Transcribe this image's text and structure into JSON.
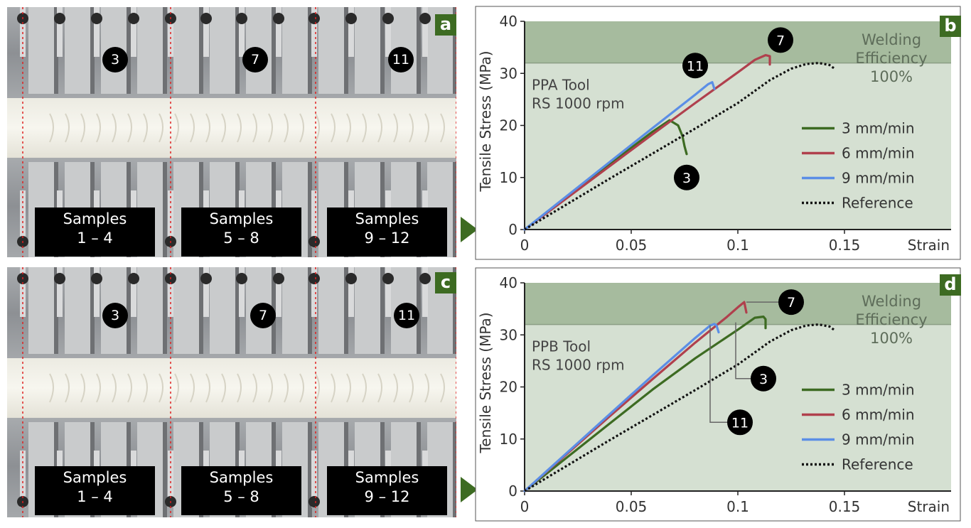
{
  "panels": {
    "a": "a",
    "b": "b",
    "c": "c",
    "d": "d"
  },
  "photos": [
    {
      "markers": [
        "3",
        "7",
        "11"
      ],
      "boxes": [
        {
          "title": "Samples",
          "range": "1 – 4"
        },
        {
          "title": "Samples",
          "range": "5 – 8"
        },
        {
          "title": "Samples",
          "range": "9 – 12"
        }
      ]
    },
    {
      "markers": [
        "3",
        "7",
        "11"
      ],
      "boxes": [
        {
          "title": "Samples",
          "range": "1 – 4"
        },
        {
          "title": "Samples",
          "range": "5 – 8"
        },
        {
          "title": "Samples",
          "range": "9 – 12"
        }
      ]
    }
  ],
  "colors": {
    "green": "#3d6b22",
    "red": "#b0404d",
    "blue": "#5b8ee6",
    "reference": "#111111",
    "plot_bg": "#d5e0d2",
    "band_bg": "#a6bb9e"
  },
  "chart_data": [
    {
      "type": "line",
      "xlabel": "Strain",
      "ylabel": "Tensile Stress (MPa)",
      "xlim": [
        0,
        0.2
      ],
      "ylim": [
        0,
        40
      ],
      "xticks": [
        0,
        0.05,
        0.1,
        0.15
      ],
      "xtick_labels": [
        "0",
        "0.05",
        "0.1",
        "0.15"
      ],
      "yticks": [
        0,
        10,
        20,
        30,
        40
      ],
      "ytick_labels": [
        "0",
        "10",
        "20",
        "30",
        "40"
      ],
      "annotation": [
        "PPA Tool",
        "RS 1000 rpm"
      ],
      "efficiency_label": [
        "Welding",
        "Efficiency",
        "100%"
      ],
      "efficiency_level": 32,
      "legend_position": "right",
      "series": [
        {
          "name": "3 mm/min",
          "color": "#3d6b22",
          "x": [
            0,
            0.02,
            0.04,
            0.06,
            0.068,
            0.072,
            0.074,
            0.075,
            0.076
          ],
          "y": [
            0,
            6.3,
            12.6,
            18.8,
            21,
            20,
            18,
            16,
            14.5
          ]
        },
        {
          "name": "6 mm/min",
          "color": "#b0404d",
          "x": [
            0,
            0.02,
            0.04,
            0.06,
            0.08,
            0.1,
            0.108,
            0.113,
            0.115,
            0.115
          ],
          "y": [
            0,
            6.1,
            12.2,
            18.3,
            24.3,
            30.2,
            32.6,
            33.5,
            33.3,
            31.7
          ]
        },
        {
          "name": "9 mm/min",
          "color": "#5b8ee6",
          "x": [
            0,
            0.02,
            0.04,
            0.06,
            0.08,
            0.086,
            0.088,
            0.089
          ],
          "y": [
            0,
            6.5,
            13,
            19.5,
            25.9,
            27.9,
            28.3,
            27
          ]
        },
        {
          "name": "Reference",
          "color": "#111111",
          "dashed": true,
          "x": [
            0,
            0.02,
            0.04,
            0.06,
            0.08,
            0.1,
            0.115,
            0.125,
            0.132,
            0.138,
            0.143,
            0.145
          ],
          "y": [
            0,
            4.9,
            9.8,
            14.6,
            19.4,
            24.3,
            28.7,
            30.9,
            31.8,
            32,
            31.6,
            31
          ]
        }
      ],
      "point_labels": [
        {
          "text": "11",
          "x": 0.08,
          "y": 31.5,
          "tx": 0.086,
          "ty": 28.3,
          "leader": false
        },
        {
          "text": "7",
          "x": 0.12,
          "y": 36.4,
          "tx": 0.113,
          "ty": 33.5,
          "leader": false
        },
        {
          "text": "3",
          "x": 0.076,
          "y": 10,
          "tx": 0.076,
          "ty": 14.5,
          "leader": false
        }
      ]
    },
    {
      "type": "line",
      "xlabel": "Strain",
      "ylabel": "Tensile Stress (MPa)",
      "xlim": [
        0,
        0.2
      ],
      "ylim": [
        0,
        40
      ],
      "xticks": [
        0,
        0.05,
        0.1,
        0.15
      ],
      "xtick_labels": [
        "0",
        "0.05",
        "0.1",
        "0.15"
      ],
      "yticks": [
        0,
        10,
        20,
        30,
        40
      ],
      "ytick_labels": [
        "0",
        "10",
        "20",
        "30",
        "40"
      ],
      "annotation": [
        "PPB Tool",
        "RS 1000 rpm"
      ],
      "efficiency_label": [
        "Welding",
        "Efficiency",
        "100%"
      ],
      "efficiency_level": 32,
      "legend_position": "right",
      "series": [
        {
          "name": "3 mm/min",
          "color": "#3d6b22",
          "x": [
            0,
            0.02,
            0.04,
            0.06,
            0.08,
            0.1,
            0.108,
            0.112,
            0.113,
            0.113
          ],
          "y": [
            0,
            6.5,
            13,
            19.5,
            25.5,
            31,
            33.3,
            33.5,
            33,
            31.3
          ]
        },
        {
          "name": "6 mm/min",
          "color": "#b0404d",
          "x": [
            0,
            0.02,
            0.04,
            0.06,
            0.08,
            0.095,
            0.1,
            0.103,
            0.104
          ],
          "y": [
            0,
            7.2,
            14.4,
            21.5,
            28.5,
            33.5,
            35.3,
            36.3,
            34.3
          ]
        },
        {
          "name": "9 mm/min",
          "color": "#5b8ee6",
          "x": [
            0,
            0.02,
            0.04,
            0.06,
            0.08,
            0.087,
            0.089,
            0.09,
            0.091
          ],
          "y": [
            0,
            7.4,
            14.8,
            22.2,
            29.4,
            31.8,
            32.1,
            31.8,
            30.5
          ]
        },
        {
          "name": "Reference",
          "color": "#111111",
          "dashed": true,
          "x": [
            0,
            0.02,
            0.04,
            0.06,
            0.08,
            0.1,
            0.115,
            0.125,
            0.132,
            0.138,
            0.143,
            0.145
          ],
          "y": [
            0,
            4.9,
            9.8,
            14.6,
            19.4,
            24.3,
            28.7,
            30.9,
            31.8,
            32,
            31.6,
            31
          ]
        }
      ],
      "point_labels": [
        {
          "text": "7",
          "x": 0.125,
          "y": 36.3,
          "tx": 0.104,
          "ty": 36.3,
          "leader": true
        },
        {
          "text": "3",
          "x": 0.112,
          "y": 21.6,
          "tx": 0.099,
          "ty": 32.4,
          "leader": true
        },
        {
          "text": "11",
          "x": 0.101,
          "y": 13.2,
          "tx": 0.087,
          "ty": 31.8,
          "leader": true
        }
      ]
    }
  ]
}
